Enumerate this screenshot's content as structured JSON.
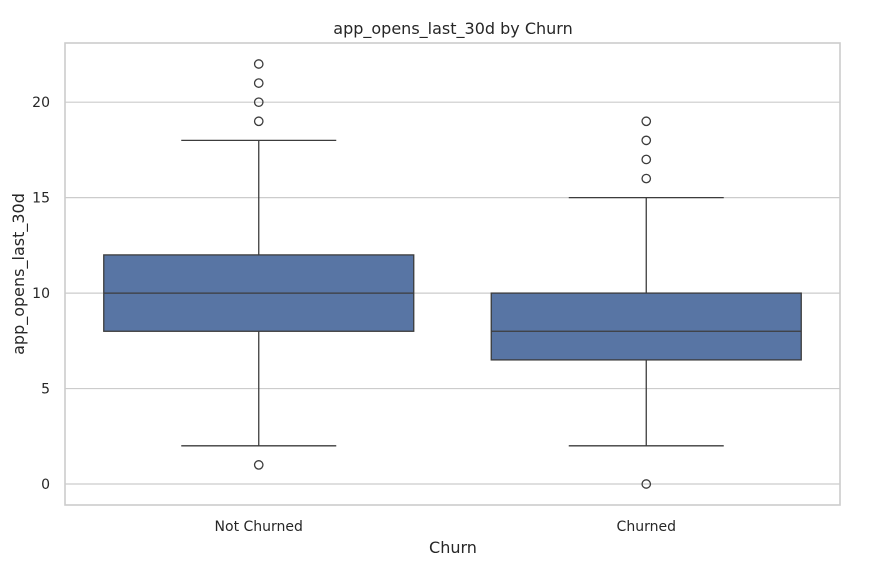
{
  "chart_data": {
    "type": "box",
    "title": "app_opens_last_30d by Churn",
    "xlabel": "Churn",
    "ylabel": "app_opens_last_30d",
    "ylim": [
      -1.1,
      23.1
    ],
    "yticks": [
      0,
      5,
      10,
      15,
      20
    ],
    "grid": "horizontal",
    "colors": {
      "box_fill": "#5875a4",
      "line": "#3c3c3c",
      "grid": "#cccccc",
      "frame": "#cccccc"
    },
    "categories": [
      "Not Churned",
      "Churned"
    ],
    "boxes": [
      {
        "category": "Not Churned",
        "whisker_low": 2,
        "q1": 8,
        "median": 10,
        "q3": 12,
        "whisker_high": 18,
        "outliers": [
          1,
          19,
          20,
          21,
          22
        ]
      },
      {
        "category": "Churned",
        "whisker_low": 2,
        "q1": 6.5,
        "median": 8,
        "q3": 10,
        "whisker_high": 15,
        "outliers": [
          0,
          16,
          17,
          18,
          19
        ]
      }
    ]
  }
}
